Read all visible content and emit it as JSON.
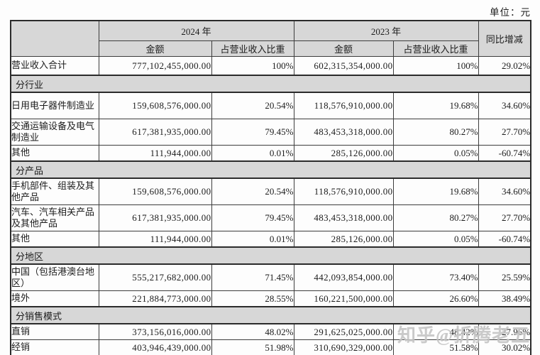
{
  "unit_label": "单位：元",
  "watermark": "知乎@折腾老五",
  "table": {
    "headers": {
      "year_2024": "2024 年",
      "year_2023": "2023 年",
      "amount_2024": "金额",
      "proportion_2024": "占营业收入比重",
      "amount_2023": "金额",
      "proportion_2023": "占营业收入比重",
      "yoy": "同比增减"
    },
    "summary_row": {
      "label": "营业收入合计",
      "amount_2024": "777,102,455,000.00",
      "pct_2024": "100%",
      "amount_2023": "602,315,354,000.00",
      "pct_2023": "100%",
      "yoy": "29.02%"
    },
    "sections": [
      {
        "title": "分行业",
        "rows": [
          {
            "label": "日用电子器件制造业",
            "amount_2024": "159,608,576,000.00",
            "pct_2024": "20.54%",
            "amount_2023": "118,576,910,000.00",
            "pct_2023": "19.68%",
            "yoy": "34.60%"
          },
          {
            "label": "交通运输设备及电气制造业",
            "amount_2024": "617,381,935,000.00",
            "pct_2024": "79.45%",
            "amount_2023": "483,453,318,000.00",
            "pct_2023": "80.27%",
            "yoy": "27.70%"
          },
          {
            "label": "其他",
            "amount_2024": "111,944,000.00",
            "pct_2024": "0.01%",
            "amount_2023": "285,126,000.00",
            "pct_2023": "0.05%",
            "yoy": "-60.74%"
          }
        ]
      },
      {
        "title": "分产品",
        "rows": [
          {
            "label": "手机部件、组装及其他产品",
            "amount_2024": "159,608,576,000.00",
            "pct_2024": "20.54%",
            "amount_2023": "118,576,910,000.00",
            "pct_2023": "19.68%",
            "yoy": "34.60%"
          },
          {
            "label": "汽车、汽车相关产品及其他产品",
            "amount_2024": "617,381,935,000.00",
            "pct_2024": "79.45%",
            "amount_2023": "483,453,318,000.00",
            "pct_2023": "80.27%",
            "yoy": "27.70%"
          },
          {
            "label": "其他",
            "amount_2024": "111,944,000.00",
            "pct_2024": "0.01%",
            "amount_2023": "285,126,000.00",
            "pct_2023": "0.05%",
            "yoy": "-60.74%"
          }
        ]
      },
      {
        "title": "分地区",
        "rows": [
          {
            "label": "中国（包括港澳台地区）",
            "amount_2024": "555,217,682,000.00",
            "pct_2024": "71.45%",
            "amount_2023": "442,093,854,000.00",
            "pct_2023": "73.40%",
            "yoy": "25.59%"
          },
          {
            "label": "境外",
            "amount_2024": "221,884,773,000.00",
            "pct_2024": "28.55%",
            "amount_2023": "160,221,500,000.00",
            "pct_2023": "26.60%",
            "yoy": "38.49%"
          }
        ]
      },
      {
        "title": "分销售模式",
        "rows": [
          {
            "label": "直销",
            "amount_2024": "373,156,016,000.00",
            "pct_2024": "48.02%",
            "amount_2023": "291,625,025,000.00",
            "pct_2023": "48.42%",
            "yoy": "27.96%"
          },
          {
            "label": "经销",
            "amount_2024": "403,946,439,000.00",
            "pct_2024": "51.98%",
            "amount_2023": "310,690,329,000.00",
            "pct_2023": "51.58%",
            "yoy": "30.02%"
          }
        ]
      }
    ]
  }
}
